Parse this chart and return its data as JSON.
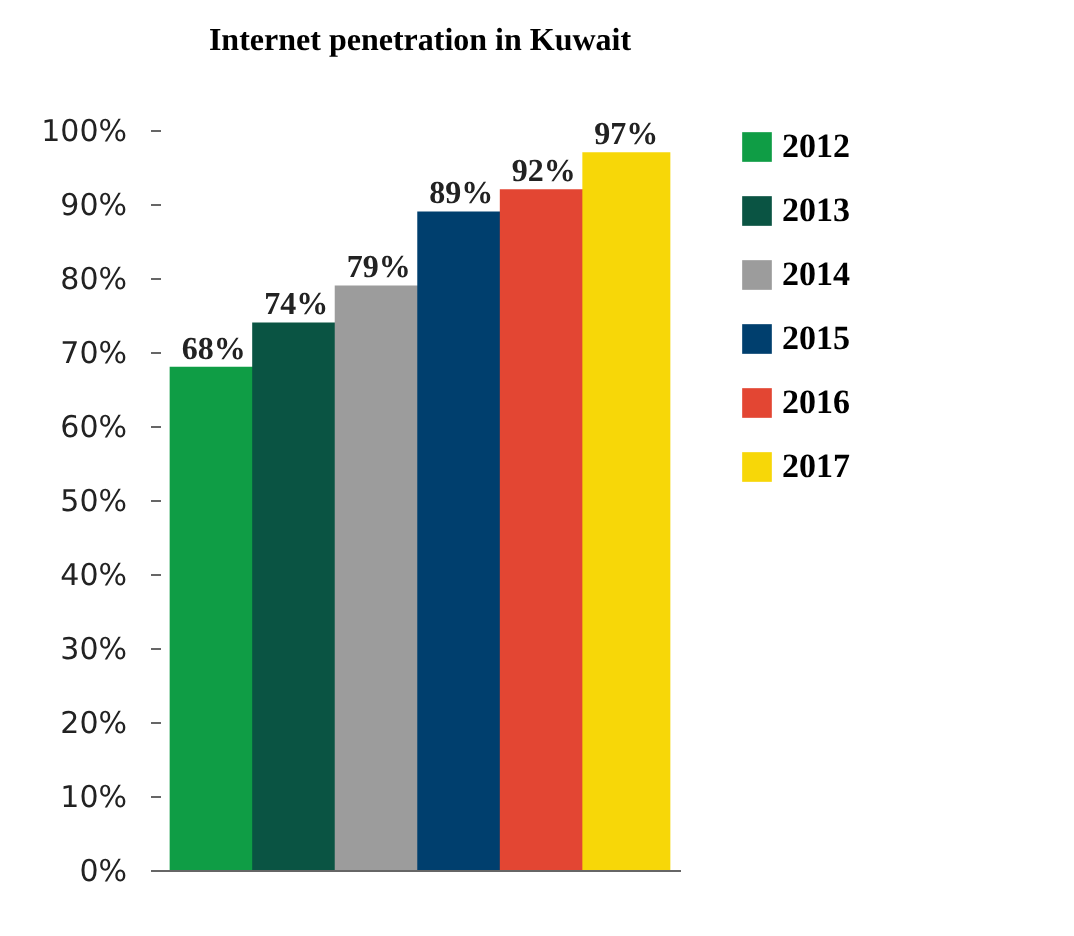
{
  "chart_data": {
    "type": "bar",
    "title": "Internet penetration in Kuwait",
    "categories": [
      null
    ],
    "series": [
      {
        "name": "2012",
        "color": "#0f9d45",
        "values": [
          68
        ],
        "value_labels": [
          "68%"
        ]
      },
      {
        "name": "2013",
        "color": "#0a5443",
        "values": [
          74
        ],
        "value_labels": [
          "74%"
        ]
      },
      {
        "name": "2014",
        "color": "#9c9c9c",
        "values": [
          79
        ],
        "value_labels": [
          "79%"
        ]
      },
      {
        "name": "2015",
        "color": "#003f6e",
        "values": [
          89
        ],
        "value_labels": [
          "89%"
        ]
      },
      {
        "name": "2016",
        "color": "#e34633",
        "values": [
          92
        ],
        "value_labels": [
          "92%"
        ]
      },
      {
        "name": "2017",
        "color": "#f7d708",
        "values": [
          97
        ],
        "value_labels": [
          "97%"
        ]
      }
    ],
    "ylim": [
      0,
      100
    ],
    "yticks": [
      {
        "value": 0,
        "label": "0%"
      },
      {
        "value": 10,
        "label": "10%"
      },
      {
        "value": 20,
        "label": "20%"
      },
      {
        "value": 30,
        "label": "30%"
      },
      {
        "value": 40,
        "label": "40%"
      },
      {
        "value": 50,
        "label": "50%"
      },
      {
        "value": 60,
        "label": "60%"
      },
      {
        "value": 70,
        "label": "70%"
      },
      {
        "value": 80,
        "label": "80%"
      },
      {
        "value": 90,
        "label": "90%"
      },
      {
        "value": 100,
        "label": "100%"
      }
    ],
    "grid": false,
    "legend": "right"
  }
}
